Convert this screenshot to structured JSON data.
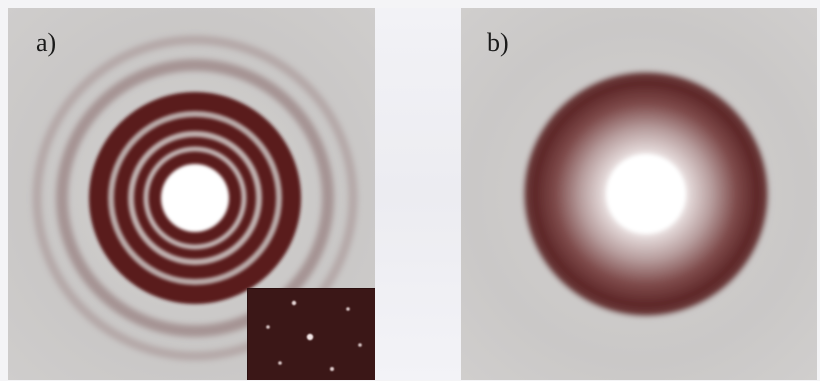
{
  "figure": {
    "panels": [
      {
        "id": "a",
        "label": "a)"
      },
      {
        "id": "b",
        "label": "b)"
      }
    ]
  },
  "colors": {
    "background": "#c9c7c6",
    "ring_dark": "#5a1e1f",
    "ring_mid": "#7e4a4a",
    "center_spot": "#ffffff",
    "inset_background": "#3b1717"
  },
  "icons": {
    "panel_a": "ring-diffraction-pattern",
    "panel_b": "diffuse-halo-pattern",
    "inset": "spot-diffraction-pattern"
  }
}
